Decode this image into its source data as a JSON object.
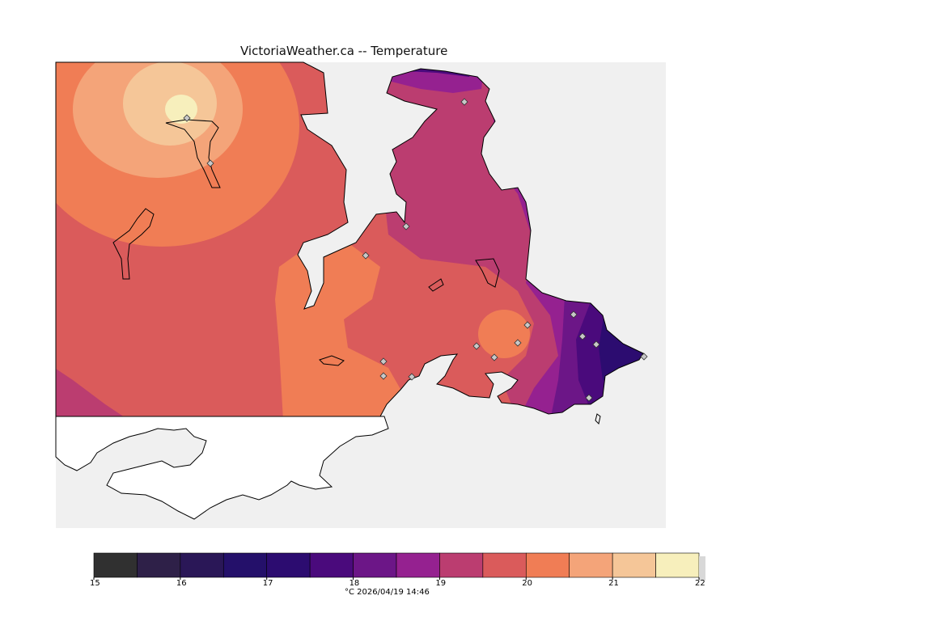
{
  "title": "VictoriaWeather.ca -- Temperature",
  "legend": {
    "unit_label": "°C",
    "timestamp": "2026/04/19 14:46",
    "ticks": [
      "15",
      "16",
      "17",
      "18",
      "19",
      "20",
      "21",
      "22"
    ],
    "bins": [
      {
        "from": 15.0,
        "to": 15.5,
        "color": "#303030"
      },
      {
        "from": 15.5,
        "to": 16.0,
        "color": "#2e2048"
      },
      {
        "from": 16.0,
        "to": 16.5,
        "color": "#2a1757"
      },
      {
        "from": 16.5,
        "to": 17.0,
        "color": "#24106a"
      },
      {
        "from": 17.0,
        "to": 17.5,
        "color": "#2c0c70"
      },
      {
        "from": 17.5,
        "to": 18.0,
        "color": "#4a0a7c"
      },
      {
        "from": 18.0,
        "to": 18.5,
        "color": "#6c1687"
      },
      {
        "from": 18.5,
        "to": 19.0,
        "color": "#952190"
      },
      {
        "from": 19.0,
        "to": 19.5,
        "color": "#bb3d70"
      },
      {
        "from": 19.5,
        "to": 20.0,
        "color": "#da5b5b"
      },
      {
        "from": 20.0,
        "to": 20.5,
        "color": "#f07d55"
      },
      {
        "from": 20.5,
        "to": 21.0,
        "color": "#f4a479"
      },
      {
        "from": 21.0,
        "to": 21.5,
        "color": "#f5c698"
      },
      {
        "from": 21.5,
        "to": 22.0,
        "color": "#f7efbc"
      }
    ]
  },
  "colors": {
    "sea": "#f0f0f0",
    "land_outside": "#ffffff",
    "coastline": "#000000",
    "station": "#c8c8c8"
  },
  "stations": [
    {
      "name": "station"
    },
    {
      "name": "station"
    },
    {
      "name": "station"
    },
    {
      "name": "station"
    },
    {
      "name": "station"
    },
    {
      "name": "station"
    },
    {
      "name": "station"
    },
    {
      "name": "station"
    },
    {
      "name": "station"
    },
    {
      "name": "station"
    },
    {
      "name": "station"
    },
    {
      "name": "station"
    },
    {
      "name": "station"
    },
    {
      "name": "station"
    },
    {
      "name": "station"
    },
    {
      "name": "station"
    },
    {
      "name": "station"
    }
  ]
}
